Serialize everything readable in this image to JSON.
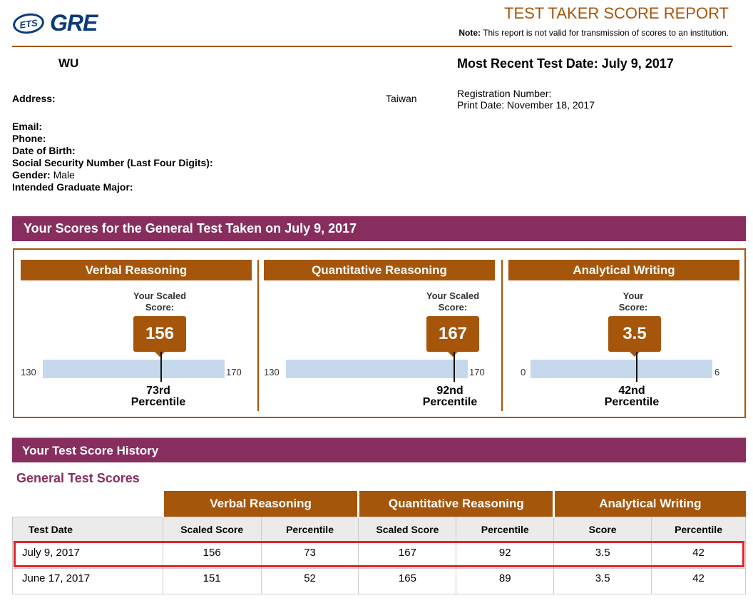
{
  "header": {
    "logo_ets": "ETS",
    "logo_gre": "GRE",
    "title": "TEST TAKER SCORE REPORT",
    "note_label": "Note:",
    "note_text": "This report is not valid for transmission of scores to an institution."
  },
  "test_taker": {
    "name": "WU",
    "most_recent_test_date": "Most Recent Test Date: July 9, 2017",
    "country": "Taiwan",
    "registration_number_label": "Registration Number:",
    "print_date": "Print Date: November 18, 2017",
    "fields": [
      {
        "label": "Address:",
        "value": ""
      },
      {
        "label": "Email:",
        "value": ""
      },
      {
        "label": "Phone:",
        "value": ""
      },
      {
        "label": "Date of Birth:",
        "value": ""
      },
      {
        "label": "Social Security Number (Last Four Digits):",
        "value": ""
      },
      {
        "label": "Gender:",
        "value": " Male"
      },
      {
        "label": "Intended Graduate Major:",
        "value": ""
      }
    ]
  },
  "scores_section": {
    "title": "Your Scores for the General Test Taken on July 9, 2017",
    "measures": [
      {
        "name": "Verbal Reasoning",
        "score_label_line1": "Your Scaled",
        "score_label_line2": "Score:",
        "score": "156",
        "scale_min": "130",
        "scale_max": "170",
        "percentile_value": "73rd",
        "percentile_word": "Percentile",
        "fraction": 0.65
      },
      {
        "name": "Quantitative Reasoning",
        "score_label_line1": "Your Scaled",
        "score_label_line2": "Score:",
        "score": "167",
        "scale_min": "130",
        "scale_max": "170",
        "percentile_value": "92nd",
        "percentile_word": "Percentile",
        "fraction": 0.925
      },
      {
        "name": "Analytical Writing",
        "score_label_line1": "Your",
        "score_label_line2": "Score:",
        "score": "3.5",
        "scale_min": "0",
        "scale_max": "6",
        "percentile_value": "42nd",
        "percentile_word": "Percentile",
        "fraction": 0.583
      }
    ]
  },
  "history_section": {
    "title": "Your Test Score History",
    "subtitle": "General Test Scores",
    "groups": [
      "Verbal Reasoning",
      "Quantitative Reasoning",
      "Analytical Writing"
    ],
    "columns": [
      "Test Date",
      "Scaled Score",
      "Percentile",
      "Scaled Score",
      "Percentile",
      "Score",
      "Percentile"
    ],
    "rows": [
      [
        "July 9, 2017",
        "156",
        "73",
        "167",
        "92",
        "3.5",
        "42"
      ],
      [
        "June 17, 2017",
        "151",
        "52",
        "165",
        "89",
        "3.5",
        "42"
      ]
    ]
  },
  "colors": {
    "accent_brown": "#a6560b",
    "section_purple": "#872e5e",
    "bar_blue": "#c6d9ec",
    "highlight_red": "#e3242b",
    "logo_blue": "#0c3b7a"
  }
}
